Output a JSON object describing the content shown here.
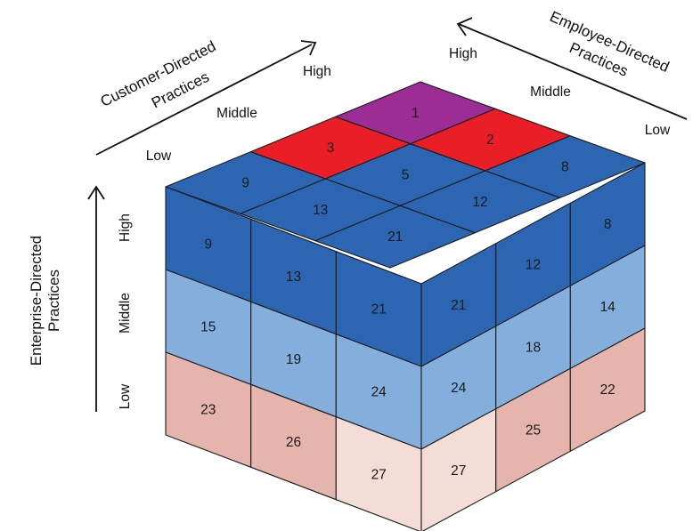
{
  "axes": {
    "customer": {
      "title_line1": "Customer-Directed",
      "title_line2": "Practices",
      "ticks": {
        "low": "Low",
        "middle": "Middle",
        "high": "High"
      }
    },
    "employee": {
      "title_line1": "Employee-Directed",
      "title_line2": "Practices",
      "ticks": {
        "high": "High",
        "middle": "Middle",
        "low": "Low"
      }
    },
    "enterprise": {
      "title_line1": "Enterprise-Directed",
      "title_line2": "Practices",
      "ticks": {
        "high": "High",
        "middle": "Middle",
        "low": "Low"
      }
    }
  },
  "colors": {
    "purple": "#9b2d94",
    "red": "#ea1e27",
    "dark_blue": "#2c66b3",
    "light_blue": "#84afdc",
    "pink": "#e4b4ad",
    "light_pink": "#f4dcd7"
  },
  "top_face": {
    "rows": [
      [
        {
          "label": "1",
          "color": "purple"
        },
        {
          "label": "2",
          "color": "red"
        },
        {
          "label": "8",
          "color": "dark_blue"
        }
      ],
      [
        {
          "label": "3",
          "color": "red"
        },
        {
          "label": "5",
          "color": "dark_blue"
        },
        {
          "label": "12",
          "color": "dark_blue"
        }
      ],
      [
        {
          "label": "9",
          "color": "dark_blue"
        },
        {
          "label": "13",
          "color": "dark_blue"
        },
        {
          "label": "21",
          "color": "dark_blue"
        }
      ]
    ]
  },
  "left_face": {
    "rows": [
      [
        {
          "label": "9",
          "color": "dark_blue"
        },
        {
          "label": "13",
          "color": "dark_blue"
        },
        {
          "label": "21",
          "color": "dark_blue"
        }
      ],
      [
        {
          "label": "15",
          "color": "light_blue"
        },
        {
          "label": "19",
          "color": "light_blue"
        },
        {
          "label": "24",
          "color": "light_blue"
        }
      ],
      [
        {
          "label": "23",
          "color": "pink"
        },
        {
          "label": "26",
          "color": "pink"
        },
        {
          "label": "27",
          "color": "light_pink"
        }
      ]
    ]
  },
  "right_face": {
    "rows": [
      [
        {
          "label": "21",
          "color": "dark_blue"
        },
        {
          "label": "12",
          "color": "dark_blue"
        },
        {
          "label": "8",
          "color": "dark_blue"
        }
      ],
      [
        {
          "label": "24",
          "color": "light_blue"
        },
        {
          "label": "18",
          "color": "light_blue"
        },
        {
          "label": "14",
          "color": "light_blue"
        }
      ],
      [
        {
          "label": "27",
          "color": "light_pink"
        },
        {
          "label": "25",
          "color": "pink"
        },
        {
          "label": "22",
          "color": "pink"
        }
      ]
    ]
  }
}
